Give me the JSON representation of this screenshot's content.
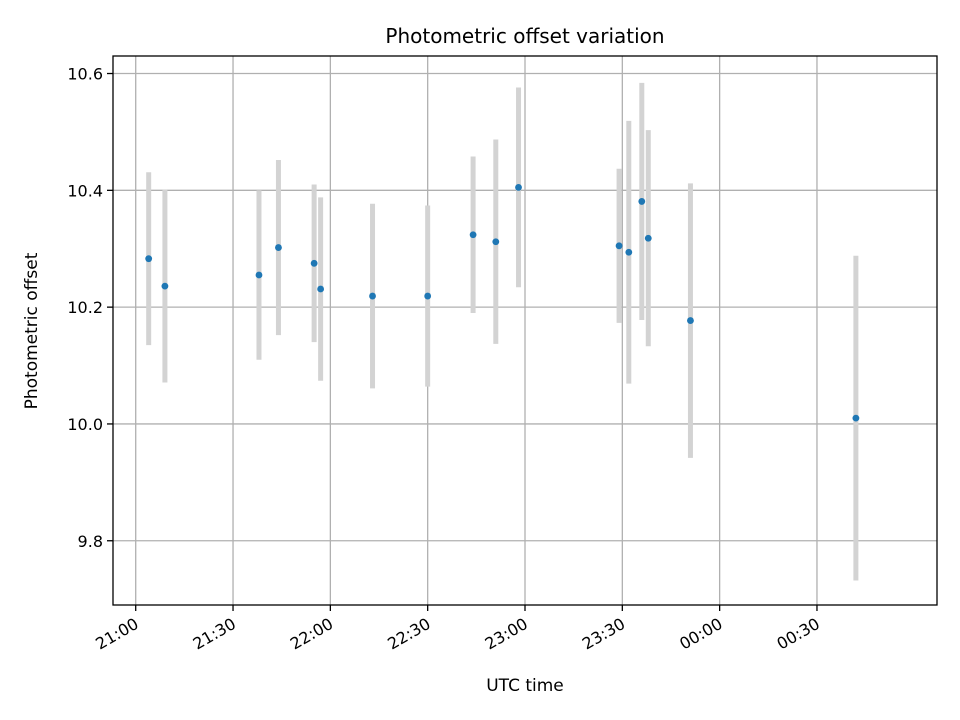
{
  "chart_data": {
    "type": "scatter",
    "title": "Photometric offset variation",
    "xlabel": "UTC time",
    "ylabel": "Photometric offset",
    "x_ticks": [
      "21:00",
      "21:30",
      "22:00",
      "22:30",
      "23:00",
      "23:30",
      "00:00",
      "00:30"
    ],
    "y_ticks": [
      "9.8",
      "10.0",
      "10.2",
      "10.4",
      "10.6"
    ],
    "xlim": [
      "20:53",
      "01:07"
    ],
    "ylim": [
      9.69,
      10.63
    ],
    "grid": true,
    "marker_color": "#1f77b4",
    "errorbar_color": "#d3d3d3",
    "points": [
      {
        "time": "21:04",
        "value": 10.283,
        "err": 0.148
      },
      {
        "time": "21:09",
        "value": 10.236,
        "err": 0.165
      },
      {
        "time": "21:38",
        "value": 10.255,
        "err": 0.145
      },
      {
        "time": "21:44",
        "value": 10.302,
        "err": 0.15
      },
      {
        "time": "21:55",
        "value": 10.275,
        "err": 0.135
      },
      {
        "time": "21:57",
        "value": 10.231,
        "err": 0.157
      },
      {
        "time": "22:13",
        "value": 10.219,
        "err": 0.158
      },
      {
        "time": "22:30",
        "value": 10.219,
        "err": 0.155
      },
      {
        "time": "22:44",
        "value": 10.324,
        "err": 0.134
      },
      {
        "time": "22:51",
        "value": 10.312,
        "err": 0.175
      },
      {
        "time": "22:58",
        "value": 10.405,
        "err": 0.171
      },
      {
        "time": "23:29",
        "value": 10.305,
        "err": 0.132
      },
      {
        "time": "23:32",
        "value": 10.294,
        "err": 0.225
      },
      {
        "time": "23:36",
        "value": 10.381,
        "err": 0.203
      },
      {
        "time": "23:38",
        "value": 10.318,
        "err": 0.185
      },
      {
        "time": "23:51",
        "value": 10.177,
        "err": 0.235
      },
      {
        "time": "00:42",
        "value": 10.01,
        "err": 0.278
      }
    ]
  }
}
